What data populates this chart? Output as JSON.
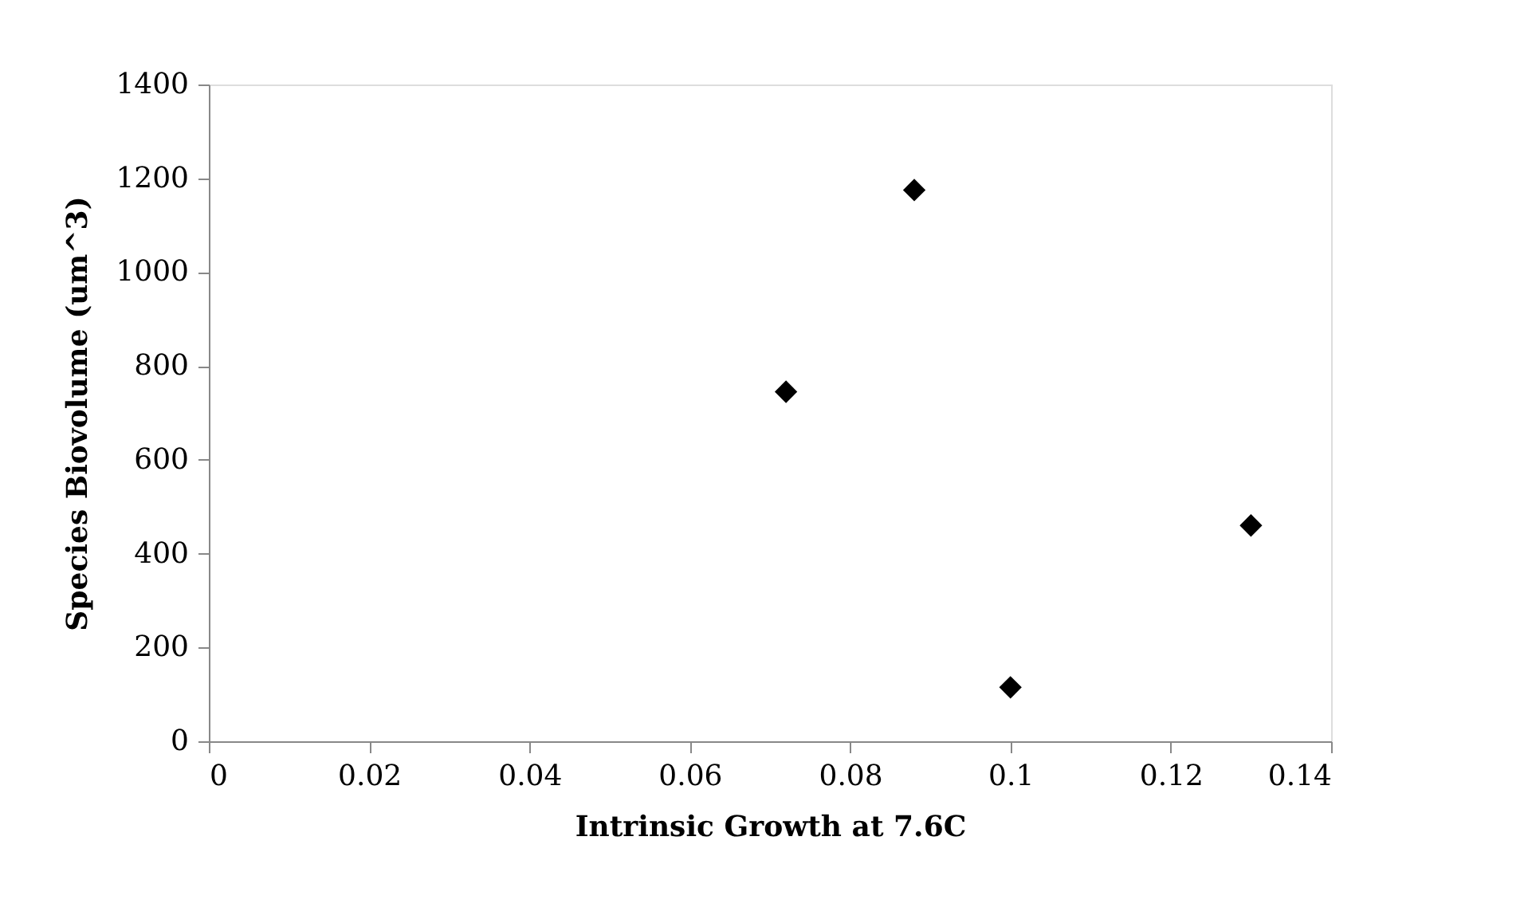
{
  "chart_data": {
    "type": "scatter",
    "xlabel": "Intrinsic Growth at 7.6C",
    "ylabel": "Species Biovolume (um^3)",
    "x": [
      0.072,
      0.088,
      0.1,
      0.13
    ],
    "series": [
      {
        "color": "#000000",
        "values": [
          745,
          1175,
          115,
          460
        ]
      }
    ],
    "xlim": [
      0,
      0.14
    ],
    "xticks": [
      0,
      0.02,
      0.04,
      0.06,
      0.08,
      0.1,
      0.12,
      0.14
    ],
    "ylim": [
      0,
      1400
    ],
    "yticks": [
      0,
      200,
      400,
      600,
      800,
      1000,
      1200,
      1400
    ],
    "marker": "diamond",
    "grid": false
  }
}
